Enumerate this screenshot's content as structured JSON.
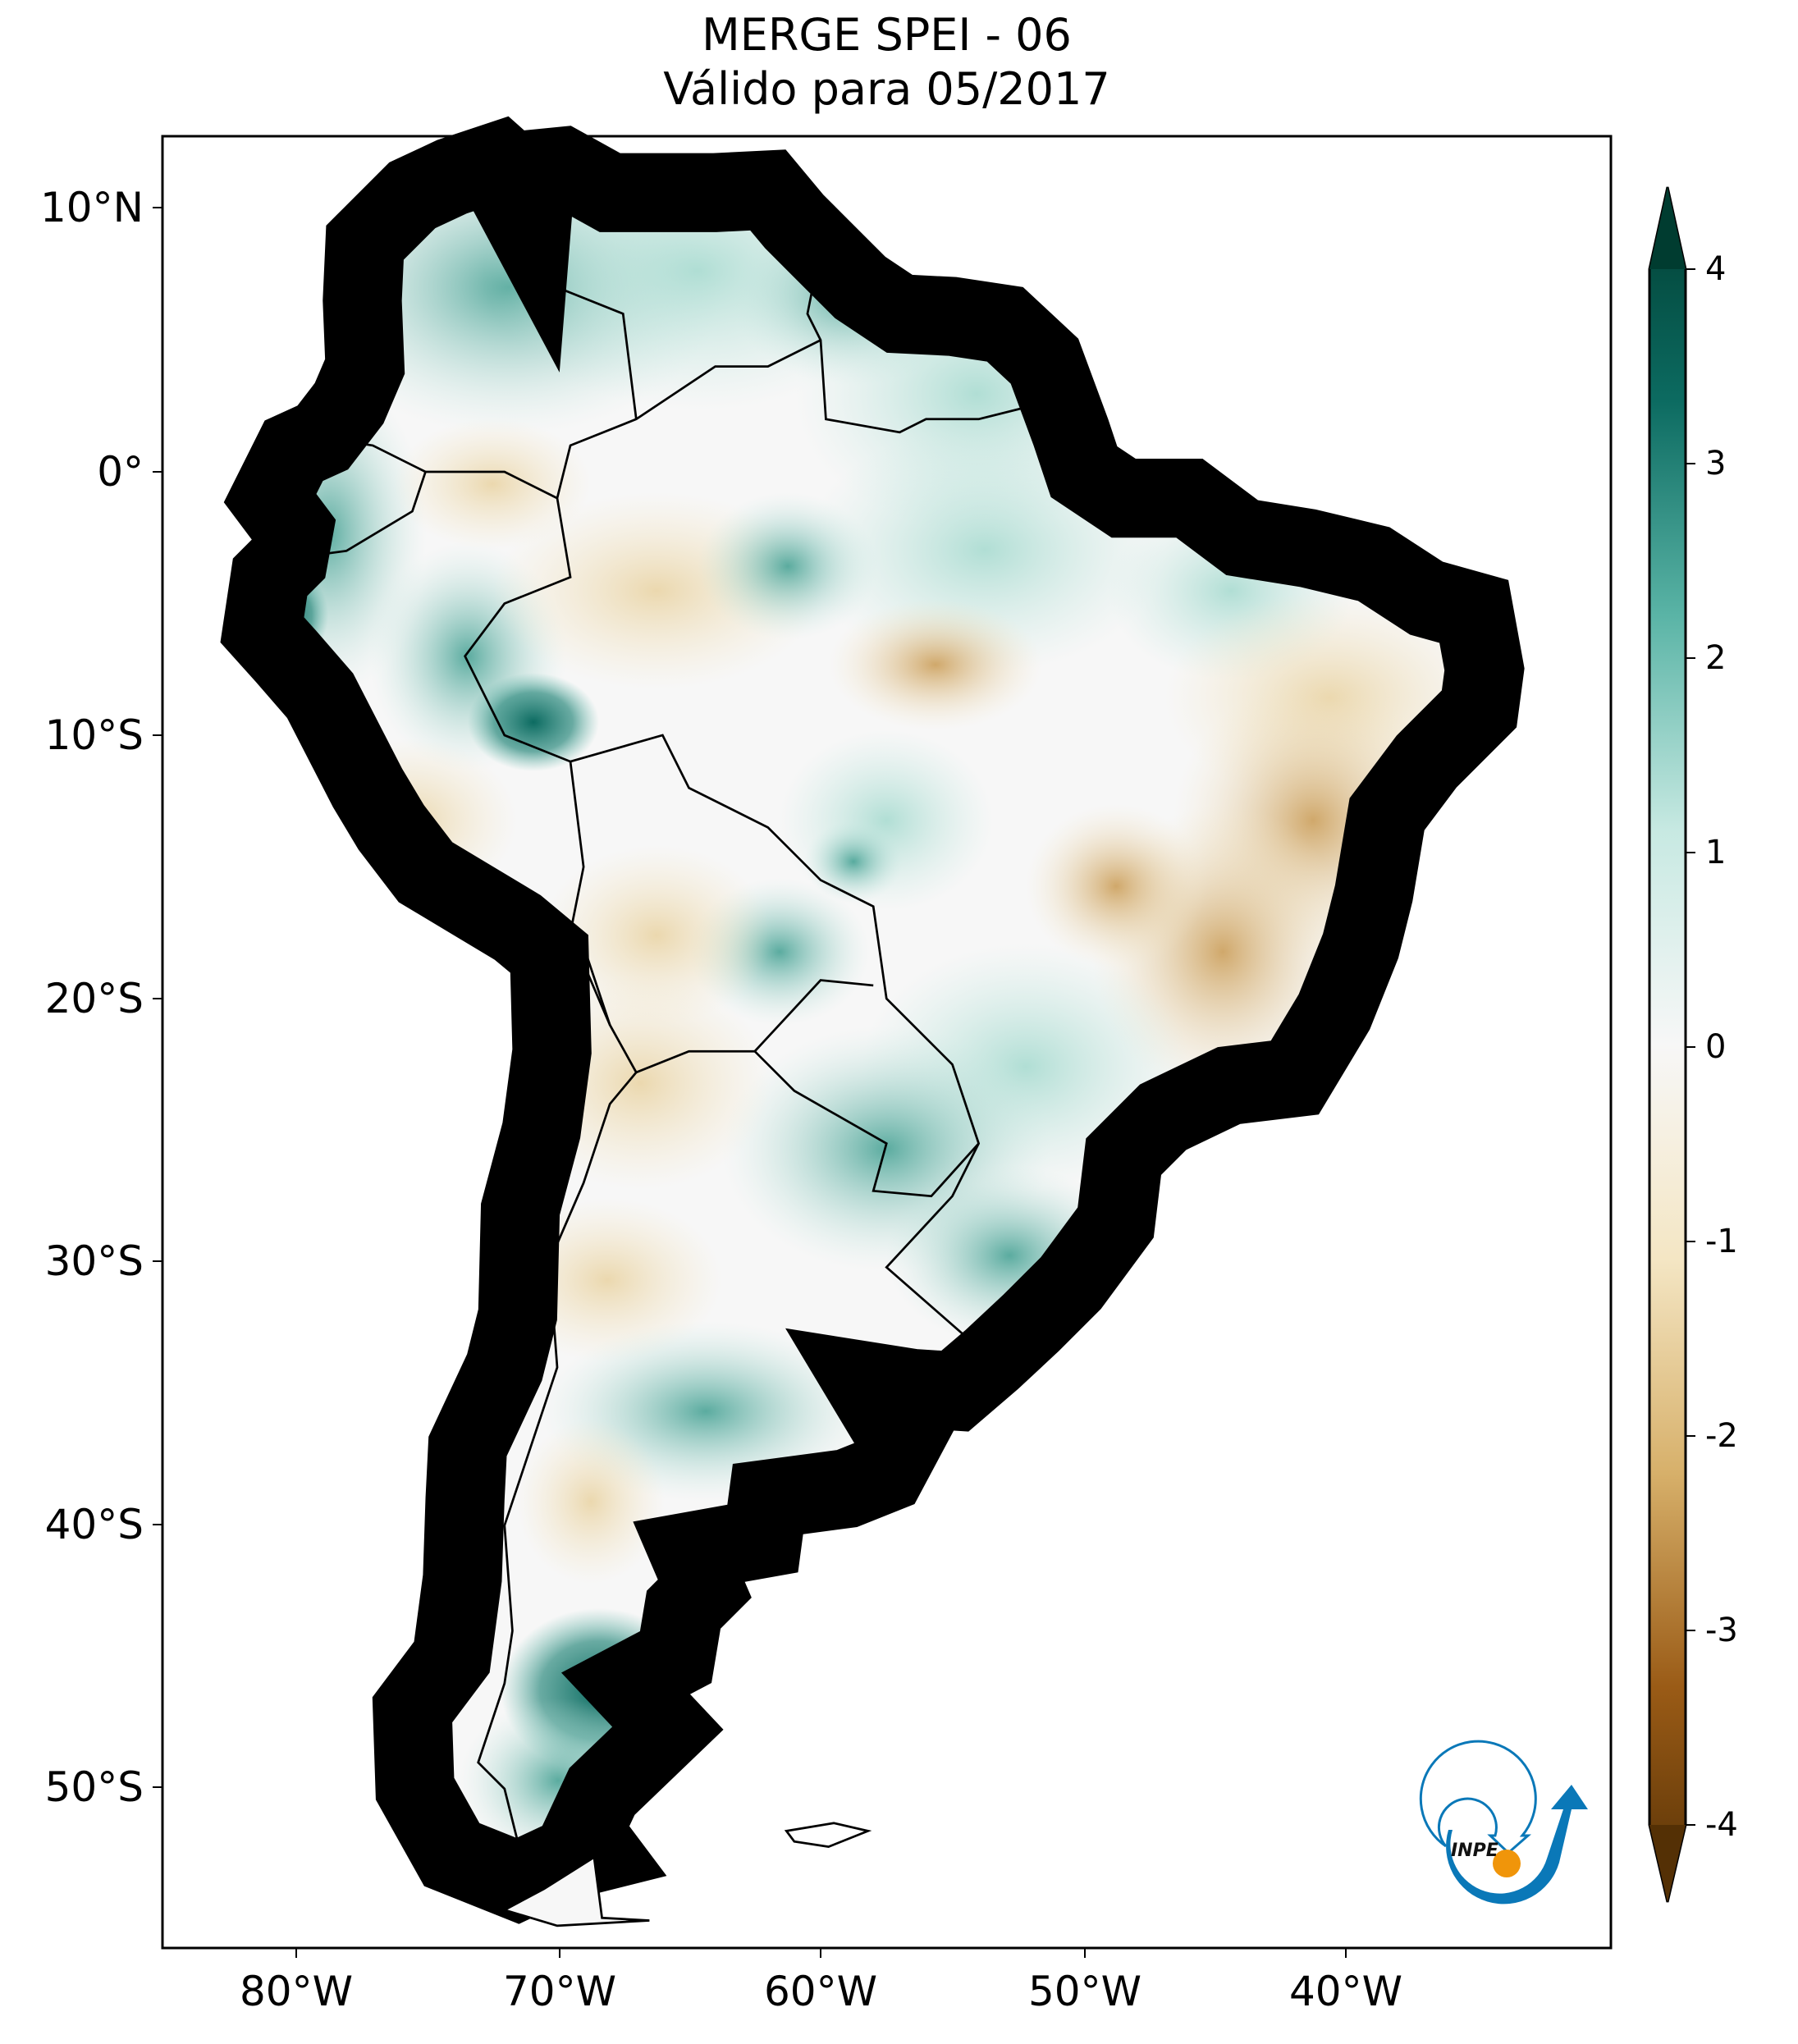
{
  "title": {
    "line1": "MERGE   SPEI - 06",
    "line2": "Válido para 05/2017"
  },
  "axes": {
    "lat_labels": [
      "10°N",
      "0°",
      "10°S",
      "20°S",
      "30°S",
      "40°S",
      "50°S"
    ],
    "lon_labels": [
      "80°W",
      "70°W",
      "60°W",
      "50°W",
      "40°W"
    ],
    "lon_range": [
      -85,
      -30
    ],
    "lat_range": [
      -56,
      12.7
    ]
  },
  "colorbar": {
    "ticks": [
      "4",
      "3",
      "2",
      "1",
      "0",
      "-1",
      "-2",
      "-3",
      "-4"
    ],
    "range": [
      -4,
      4
    ],
    "extend": "both",
    "colormap": "BrBG",
    "colors": {
      "max": "#003c30",
      "pos3": "#0c6b61",
      "pos2": "#5ab4a6",
      "pos1": "#c7e9e2",
      "zero": "#f7f7f7",
      "neg1": "#f4e6c4",
      "neg2": "#d7b06a",
      "neg3": "#9a5b16",
      "min": "#543005"
    }
  },
  "logo": {
    "text": "INPE",
    "colors": {
      "blue": "#0a78b8",
      "orange": "#f0950a"
    }
  }
}
